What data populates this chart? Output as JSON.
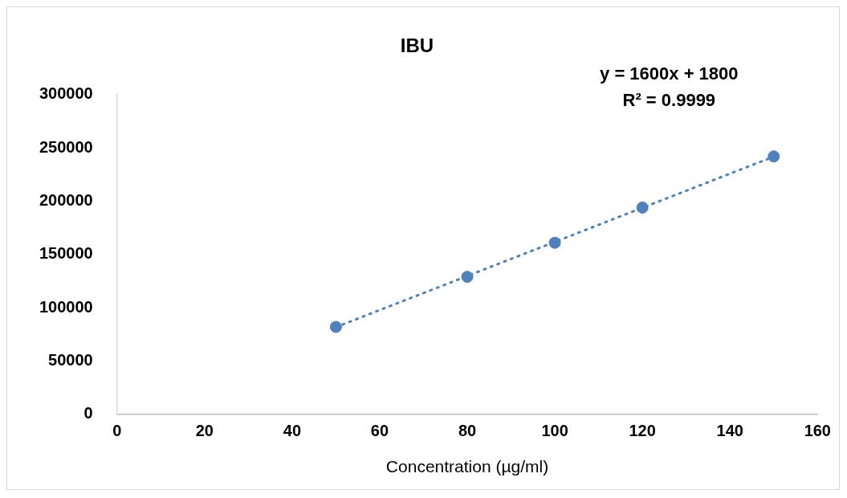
{
  "chart_data": {
    "type": "scatter",
    "title": "IBU",
    "xlabel": "Concentration (µg/ml)",
    "x": [
      50,
      80,
      100,
      120,
      150
    ],
    "series": [
      {
        "color": "#4f81bd",
        "values": [
          82000,
          129000,
          161000,
          194000,
          242000
        ],
        "marker": "circle"
      },
      {
        "type": "line",
        "color": "#4f81bd",
        "x": [
          50,
          150
        ],
        "values": [
          81800,
          241800
        ],
        "line_style": "dotted",
        "marker": "none"
      }
    ],
    "annotations": [
      "y = 1600x + 1800",
      "R² = 0.9999"
    ],
    "xlim": [
      0,
      160
    ],
    "xticks": [
      0,
      20,
      40,
      60,
      80,
      100,
      120,
      140,
      160
    ],
    "ylim": [
      0,
      300000
    ],
    "yticks": [
      0,
      50000,
      100000,
      150000,
      200000,
      250000,
      300000
    ],
    "grid": false,
    "legend": false
  }
}
